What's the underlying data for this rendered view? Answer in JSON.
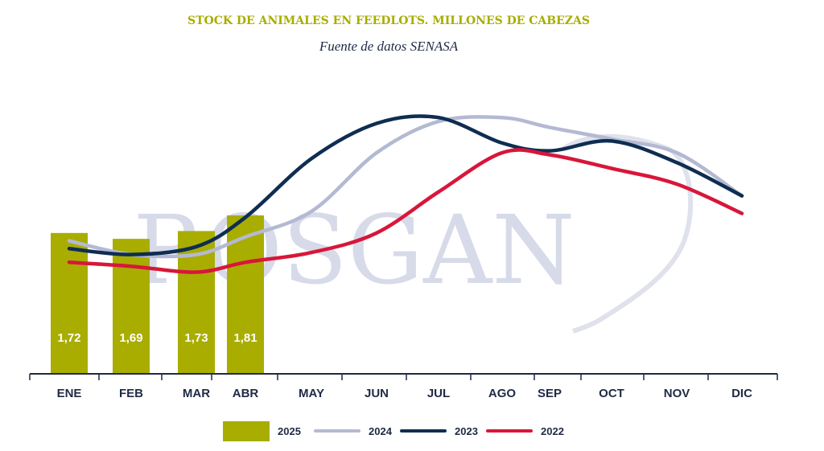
{
  "chart_data": {
    "type": "bar",
    "title": "STOCK DE ANIMALES EN FEEDLOTS. MILLONES DE CABEZAS",
    "subtitle": "Fuente de datos SENASA",
    "watermark": "ROSGAN",
    "categories": [
      "ENE",
      "FEB",
      "MAR",
      "ABR",
      "MAY",
      "JUN",
      "JUL",
      "AGO",
      "SEP",
      "OCT",
      "NOV",
      "DIC"
    ],
    "ylim": [
      1.0,
      2.5
    ],
    "grid": false,
    "legend_position": "bottom",
    "bar_series": {
      "name": "2025",
      "color": "#a8ad00",
      "values": [
        1.72,
        1.69,
        1.73,
        1.81
      ],
      "labels": [
        "1,72",
        "1,69",
        "1,73",
        "1,81"
      ]
    },
    "line_series": [
      {
        "name": "2024",
        "color": "#b4b9d3",
        "values": [
          1.68,
          1.61,
          1.61,
          1.7,
          1.83,
          2.13,
          2.29,
          2.31,
          2.26,
          2.2,
          2.13,
          1.91
        ]
      },
      {
        "name": "2023",
        "color": "#0f2d52",
        "values": [
          1.64,
          1.61,
          1.65,
          1.8,
          2.1,
          2.28,
          2.31,
          2.18,
          2.14,
          2.19,
          2.08,
          1.91
        ]
      },
      {
        "name": "2022",
        "color": "#d8163a",
        "values": [
          1.57,
          1.55,
          1.52,
          1.57,
          1.62,
          1.72,
          1.93,
          2.13,
          2.12,
          2.05,
          1.97,
          1.82
        ]
      }
    ]
  },
  "colors": {
    "title": "#a8ad00",
    "subtitle": "#1f2a44",
    "axis": "#1f2a44",
    "bar_label": "#ffffff",
    "watermark": "#c9cde0"
  }
}
